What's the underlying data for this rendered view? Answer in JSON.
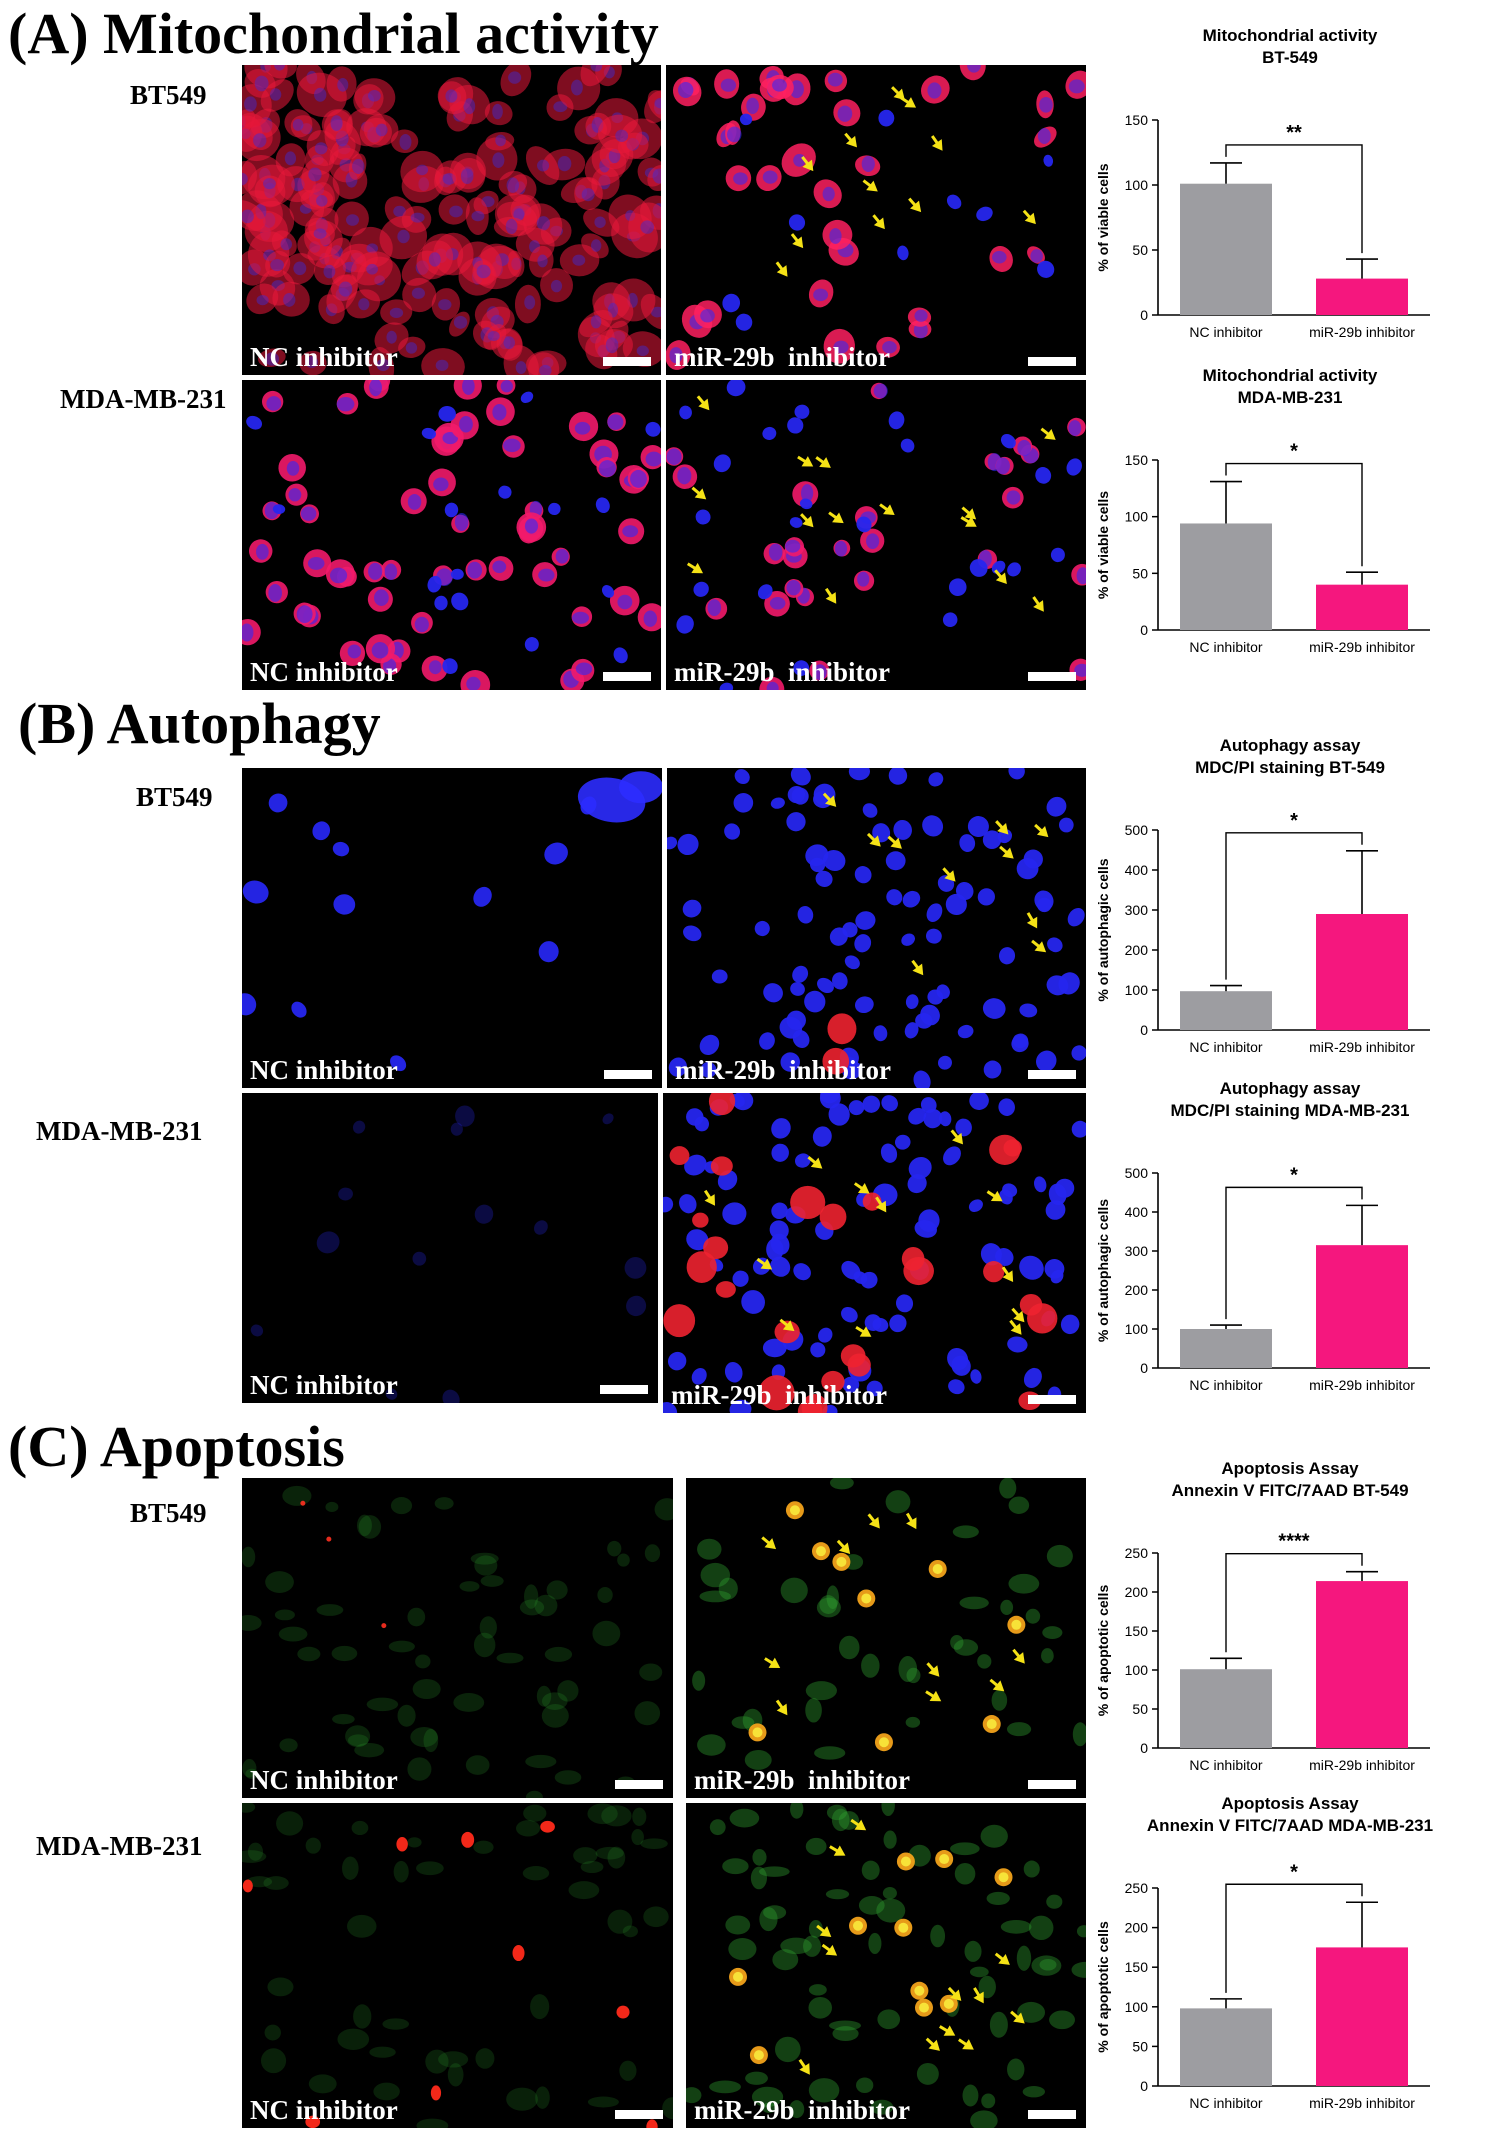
{
  "sections": {
    "a": {
      "title": "(A) Mitochondrial activity"
    },
    "b": {
      "title": "(B) Autophagy"
    },
    "c": {
      "title": "(C) Apoptosis"
    }
  },
  "row_labels": {
    "bt549": "BT549",
    "mda": "MDA-MB-231"
  },
  "panel_captions": {
    "nc": "NC inhibitor",
    "mir": "miR-29b  inhibitor"
  },
  "colors": {
    "nc_bar": "#9d9da1",
    "mir_bar": "#f5177e",
    "arrow": "#f5e216"
  },
  "chart_data": [
    {
      "type": "bar",
      "title": "Mitochondrial activity",
      "subtitle": "BT-549",
      "ylabel": "% of viable cells",
      "categories": [
        "NC inhibitor",
        "miR-29b inhibitor"
      ],
      "values": [
        101,
        28
      ],
      "errors": [
        16,
        15
      ],
      "ylim": [
        0,
        150
      ],
      "yticks": [
        0,
        50,
        100,
        150
      ],
      "significance": "**"
    },
    {
      "type": "bar",
      "title": "Mitochondrial activity",
      "subtitle": "MDA-MB-231",
      "ylabel": "% of viable cells",
      "categories": [
        "NC inhibitor",
        "miR-29b inhibitor"
      ],
      "values": [
        94,
        40
      ],
      "errors": [
        37,
        11
      ],
      "ylim": [
        0,
        150
      ],
      "yticks": [
        0,
        50,
        100,
        150
      ],
      "significance": "*"
    },
    {
      "type": "bar",
      "title": "Autophagy assay",
      "subtitle": "MDC/PI staining BT-549",
      "ylabel": "% of autophagic cells",
      "categories": [
        "NC inhibitor",
        "miR-29b inhibitor"
      ],
      "values": [
        97,
        290
      ],
      "errors": [
        14,
        158
      ],
      "ylim": [
        0,
        500
      ],
      "yticks": [
        0,
        100,
        200,
        300,
        400,
        500
      ],
      "significance": "*"
    },
    {
      "type": "bar",
      "title": "Autophagy assay",
      "subtitle": "MDC/PI staining MDA-MB-231",
      "ylabel": "% of autophagic cells",
      "categories": [
        "NC inhibitor",
        "miR-29b inhibitor"
      ],
      "values": [
        100,
        315
      ],
      "errors": [
        10,
        102
      ],
      "ylim": [
        0,
        500
      ],
      "yticks": [
        0,
        100,
        200,
        300,
        400,
        500
      ],
      "significance": "*"
    },
    {
      "type": "bar",
      "title": "Apoptosis Assay",
      "subtitle": "Annexin V FITC/7AAD BT-549",
      "ylabel": "% of apoptotic cells",
      "categories": [
        "NC inhibitor",
        "miR-29b inhibitor"
      ],
      "values": [
        101,
        214
      ],
      "errors": [
        14,
        12
      ],
      "ylim": [
        0,
        250
      ],
      "yticks": [
        0,
        50,
        100,
        150,
        200,
        250
      ],
      "significance": "****"
    },
    {
      "type": "bar",
      "title": "Apoptosis Assay",
      "subtitle": "Annexin V FITC/7AAD MDA-MB-231",
      "ylabel": "% of apoptotic cells",
      "categories": [
        "NC inhibitor",
        "miR-29b inhibitor"
      ],
      "values": [
        98,
        175
      ],
      "errors": [
        12,
        57
      ],
      "ylim": [
        0,
        250
      ],
      "yticks": [
        0,
        50,
        100,
        150,
        200,
        250
      ],
      "significance": "*"
    }
  ]
}
